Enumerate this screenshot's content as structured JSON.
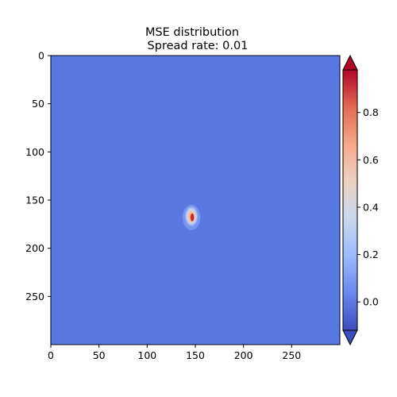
{
  "chart_data": {
    "type": "heatmap",
    "title": "MSE distribution",
    "subtitle": "Spread rate: 0.01",
    "xlabel": "",
    "ylabel": "",
    "grid": false,
    "xlim": [
      0,
      300
    ],
    "ylim": [
      300,
      0
    ],
    "x_ticks": [
      "0",
      "50",
      "100",
      "150",
      "200",
      "250"
    ],
    "y_ticks": [
      "0",
      "50",
      "100",
      "150",
      "200",
      "250"
    ],
    "background_value": 0.0,
    "hotspot": {
      "center": [
        146,
        168
      ],
      "peak_value": 0.9,
      "extent_x": [
        139,
        154
      ],
      "extent_y": [
        157,
        180
      ]
    },
    "colorbar": {
      "colormap": "coolwarm",
      "range": [
        -0.12,
        0.98
      ],
      "extend": "both",
      "ticks": [
        "0.0",
        "0.2",
        "0.4",
        "0.6",
        "0.8"
      ],
      "tick_values": [
        0.0,
        0.2,
        0.4,
        0.6,
        0.8
      ],
      "colors": [
        "#3b4cc0",
        "#6788ee",
        "#9abbff",
        "#c9d7f0",
        "#edd1c2",
        "#f7a889",
        "#e26952",
        "#b40426"
      ]
    }
  }
}
